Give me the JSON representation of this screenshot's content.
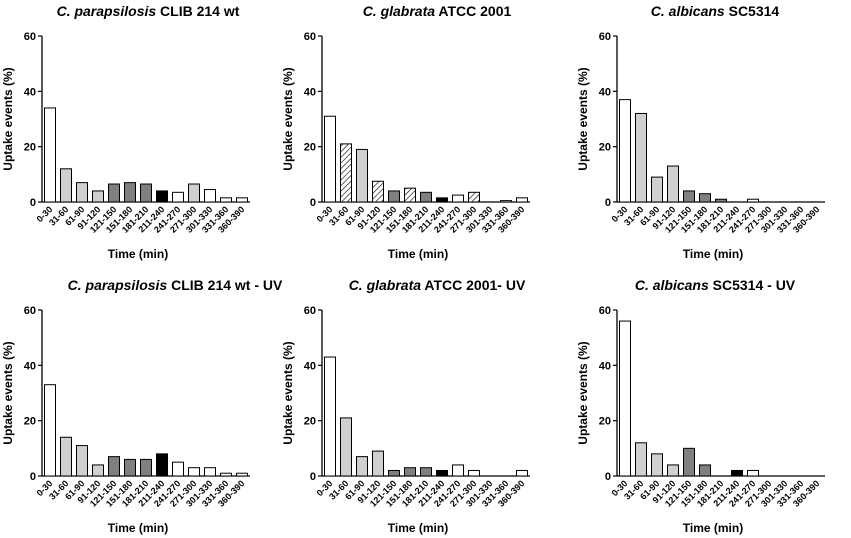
{
  "chart_data": [
    {
      "type": "bar",
      "title_italic": "C. parapsilosis",
      "title_rest": " CLIB 214 wt",
      "xlabel": "Time (min)",
      "ylabel": "Uptake events (%)",
      "ylim": [
        0,
        60
      ],
      "yticks": [
        "0",
        "20",
        "40",
        "60"
      ],
      "categories": [
        "0-30",
        "31-60",
        "61-90",
        "91-120",
        "121-150",
        "151-180",
        "181-210",
        "211-240",
        "241-270",
        "271-300",
        "301-330",
        "331-360",
        "360-390"
      ],
      "values": [
        34,
        12,
        7,
        4,
        6.5,
        7,
        6.5,
        4,
        3.5,
        6.5,
        4.5,
        1.5,
        1.5
      ],
      "fills": [
        "#ffffff",
        "#d0d0d0",
        "#d0d0d0",
        "#d0d0d0",
        "#808080",
        "#808080",
        "#808080",
        "#000000",
        "#ffffff",
        "#d0d0d0",
        "#ffffff",
        "#ffffff",
        "#ffffff"
      ]
    },
    {
      "type": "bar",
      "title_italic": "C. glabrata",
      "title_rest": " ATCC 2001",
      "xlabel": "Time (min)",
      "ylabel": "Uptake events (%)",
      "ylim": [
        0,
        60
      ],
      "yticks": [
        "0",
        "20",
        "40",
        "60"
      ],
      "categories": [
        "0-30",
        "31-60",
        "61-90",
        "91-120",
        "121-150",
        "151-180",
        "181-210",
        "211-240",
        "241-270",
        "271-300",
        "301-330",
        "331-360",
        "360-390"
      ],
      "values": [
        31,
        21,
        19,
        7.5,
        4,
        5,
        3.5,
        1.5,
        2.5,
        3.5,
        0,
        0.5,
        1.5
      ],
      "fills": [
        "#ffffff",
        "hatch",
        "#d0d0d0",
        "hatch",
        "#808080",
        "hatch",
        "#808080",
        "#000000",
        "#ffffff",
        "hatch",
        "#ffffff",
        "#ffffff",
        "#ffffff"
      ]
    },
    {
      "type": "bar",
      "title_italic": "C. albicans",
      "title_rest": " SC5314",
      "xlabel": "Time (min)",
      "ylabel": "Uptake events (%)",
      "ylim": [
        0,
        60
      ],
      "yticks": [
        "0",
        "20",
        "40",
        "60"
      ],
      "categories": [
        "0-30",
        "31-60",
        "61-90",
        "91-120",
        "121-150",
        "151-180",
        "181-210",
        "211-240",
        "241-270",
        "271-300",
        "301-330",
        "331-360",
        "360-390"
      ],
      "values": [
        37,
        32,
        9,
        13,
        4,
        3,
        1,
        0,
        1,
        0,
        0,
        0,
        0
      ],
      "fills": [
        "#ffffff",
        "#d0d0d0",
        "#d0d0d0",
        "#d0d0d0",
        "#808080",
        "#808080",
        "#808080",
        "#000000",
        "#ffffff",
        "#ffffff",
        "#ffffff",
        "#ffffff",
        "#ffffff"
      ]
    },
    {
      "type": "bar",
      "title_italic": "C. parapsilosis",
      "title_rest": " CLIB 214 wt - UV",
      "xlabel": "Time (min)",
      "ylabel": "Uptake events (%)",
      "ylim": [
        0,
        60
      ],
      "yticks": [
        "0",
        "20",
        "40",
        "60"
      ],
      "categories": [
        "0-30",
        "31-60",
        "61-90",
        "91-120",
        "121-150",
        "151-180",
        "181-210",
        "211-240",
        "241-270",
        "271-300",
        "301-330",
        "331-360",
        "360-390"
      ],
      "values": [
        33,
        14,
        11,
        4,
        7,
        6,
        6,
        8,
        5,
        3,
        3,
        1,
        1
      ],
      "fills": [
        "#ffffff",
        "#d0d0d0",
        "#d0d0d0",
        "#d0d0d0",
        "#808080",
        "#808080",
        "#808080",
        "#000000",
        "#ffffff",
        "#ffffff",
        "#ffffff",
        "#ffffff",
        "#ffffff"
      ]
    },
    {
      "type": "bar",
      "title_italic": "C. glabrata",
      "title_rest": " ATCC 2001- UV",
      "xlabel": "Time (min)",
      "ylabel": "Uptake events (%)",
      "ylim": [
        0,
        60
      ],
      "yticks": [
        "0",
        "20",
        "40",
        "60"
      ],
      "categories": [
        "0-30",
        "31-60",
        "61-90",
        "91-120",
        "121-150",
        "151-180",
        "181-210",
        "211-240",
        "241-270",
        "271-300",
        "301-330",
        "331-360",
        "360-390"
      ],
      "values": [
        43,
        21,
        7,
        9,
        2,
        3,
        3,
        2,
        4,
        2,
        0,
        0,
        2
      ],
      "fills": [
        "#ffffff",
        "#d0d0d0",
        "#d0d0d0",
        "#d0d0d0",
        "#808080",
        "#808080",
        "#808080",
        "#000000",
        "#ffffff",
        "#ffffff",
        "#ffffff",
        "#ffffff",
        "#ffffff"
      ]
    },
    {
      "type": "bar",
      "title_italic": "C. albicans",
      "title_rest": " SC5314 - UV",
      "xlabel": "Time (min)",
      "ylabel": "Uptake events (%)",
      "ylim": [
        0,
        60
      ],
      "yticks": [
        "0",
        "20",
        "40",
        "60"
      ],
      "categories": [
        "0-30",
        "31-60",
        "61-90",
        "91-120",
        "121-150",
        "151-180",
        "181-210",
        "211-240",
        "241-270",
        "271-300",
        "301-330",
        "331-360",
        "360-390"
      ],
      "values": [
        56,
        12,
        8,
        4,
        10,
        4,
        0,
        2,
        2,
        0,
        0,
        0,
        0
      ],
      "fills": [
        "#ffffff",
        "#d0d0d0",
        "#d0d0d0",
        "#d0d0d0",
        "#808080",
        "#808080",
        "#808080",
        "#000000",
        "#ffffff",
        "#ffffff",
        "#ffffff",
        "#ffffff",
        "#ffffff"
      ]
    }
  ]
}
